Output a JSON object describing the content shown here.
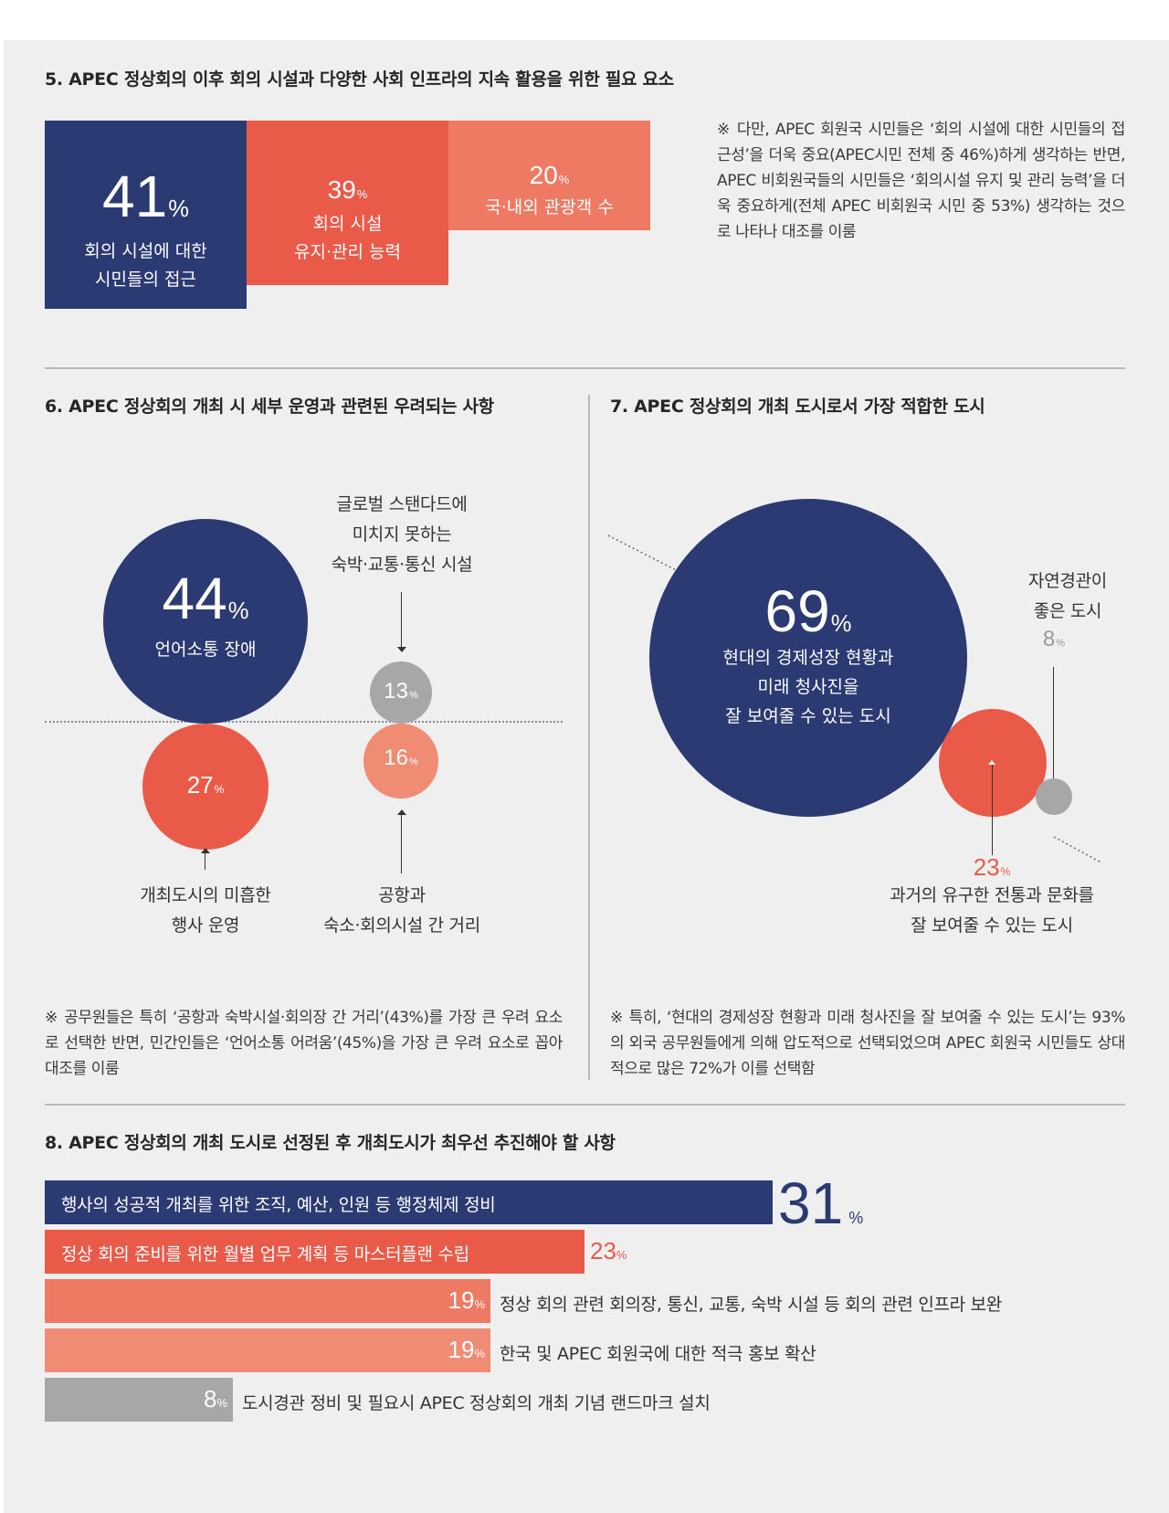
{
  "colors": {
    "navy": "#2b3a72",
    "red": "#e95a48",
    "coral": "#ee7a64",
    "salmon": "#f08b74",
    "gray": "#a7a7a7",
    "background": "#efefef"
  },
  "section5": {
    "title": "5. APEC 정상회의 이후 회의 시설과 다양한 사회 인프라의 지속 활용을 위한 필요 요소",
    "note": "※ 다만, APEC 회원국 시민들은 ‘회의 시설에 대한 시민들의 접근성’을 더욱 중요(APEC시민 전체 중 46%)하게 생각하는 반면, APEC 비회원국들의 시민들은 ‘회의시설 유지 및 관리 능력’을 더욱 중요하게(전체 APEC 비회원국 시민 중 53%) 생각하는 것으로 나타나 대조를 이룸",
    "items": [
      {
        "value": "41",
        "unit": "%",
        "label_line1": "회의 시설에 대한",
        "label_line2": "시민들의 접근"
      },
      {
        "value": "39",
        "unit": "%",
        "label_line1": "회의 시설",
        "label_line2": "유지·관리 능력"
      },
      {
        "value": "20",
        "unit": "%",
        "label_line1": "국·내외 관광객 수",
        "label_line2": ""
      }
    ]
  },
  "section6": {
    "title": "6. APEC 정상회의 개최 시 세부 운영과 관련된 우려되는 사항",
    "note": "※ 공무원들은 특히 ‘공항과 숙박시설·회의장 간 거리’(43%)를 가장 큰 우려 요소로 선택한 반면, 민간인들은 ‘언어소통 어려움’(45%)을 가장 큰 우려 요소로 꼽아 대조를 이룸",
    "items": [
      {
        "value": "44",
        "unit": "%",
        "label_line1": "언어소통 장애",
        "label_line2": ""
      },
      {
        "value": "27",
        "unit": "%",
        "label_line1": "개최도시의 미흡한",
        "label_line2": "행사 운영"
      },
      {
        "value": "13",
        "unit": "%",
        "label_line1": "글로벌 스탠다드에",
        "label_line2": "미치지 못하는",
        "label_line3": "숙박·교통·통신 시설"
      },
      {
        "value": "16",
        "unit": "%",
        "label_line1": "공항과",
        "label_line2": "숙소·회의시설 간 거리"
      }
    ]
  },
  "section7": {
    "title": "7. APEC 정상회의 개최 도시로서 가장 적합한 도시",
    "note": "※ 특히, ‘현대의 경제성장 현황과 미래 청사진을 잘 보여줄 수 있는 도시’는 93%의 외국 공무원들에게 의해 압도적으로 선택되었으며 APEC 회원국 시민들도 상대적으로 많은 72%가 이를 선택함",
    "items": [
      {
        "value": "69",
        "unit": "%",
        "label_line1": "현대의 경제성장 현황과",
        "label_line2": "미래 청사진을",
        "label_line3": "잘 보여줄 수 있는 도시"
      },
      {
        "value": "23",
        "unit": "%",
        "label_line1": "과거의 유구한 전통과 문화를",
        "label_line2": "잘 보여줄 수 있는 도시"
      },
      {
        "value": "8",
        "unit": "%",
        "label_line1": "자연경관이",
        "label_line2": "좋은 도시"
      }
    ]
  },
  "section8": {
    "title": "8. APEC 정상회의 개최 도시로 선정된 후 개최도시가 최우선 추진해야 할 사항",
    "items": [
      {
        "value": "31",
        "unit": "%",
        "label": "행사의 성공적 개최를 위한 조직, 예산, 인원 등 행정체제 정비"
      },
      {
        "value": "23",
        "unit": "%",
        "label": "정상 회의 준비를 위한 월별 업무 계획 등 마스터플랜 수립"
      },
      {
        "value": "19",
        "unit": "%",
        "label": "정상 회의 관련 회의장, 통신, 교통, 숙박 시설 등 회의 관련 인프라 보완"
      },
      {
        "value": "19",
        "unit": "%",
        "label": "한국 및 APEC 회원국에 대한 적극 홍보 확산"
      },
      {
        "value": "8",
        "unit": "%",
        "label": "도시경관 정비 및 필요시 APEC 정상회의 개최 기념 랜드마크 설치"
      }
    ]
  },
  "chart_data": [
    {
      "type": "bar",
      "title": "5. APEC 정상회의 이후 회의 시설과 다양한 사회 인프라의 지속 활용을 위한 필요 요소",
      "categories": [
        "회의 시설에 대한 시민들의 접근",
        "회의 시설 유지·관리 능력",
        "국·내외 관광객 수"
      ],
      "values": [
        41,
        39,
        20
      ],
      "unit": "%"
    },
    {
      "type": "bubble",
      "title": "6. APEC 정상회의 개최 시 세부 운영과 관련된 우려되는 사항",
      "categories": [
        "언어소통 장애",
        "개최도시의 미흡한 행사 운영",
        "글로벌 스탠다드에 미치지 못하는 숙박·교통·통신 시설",
        "공항과 숙소·회의시설 간 거리"
      ],
      "values": [
        44,
        27,
        13,
        16
      ],
      "unit": "%"
    },
    {
      "type": "bubble",
      "title": "7. APEC 정상회의 개최 도시로서 가장 적합한 도시",
      "categories": [
        "현대의 경제성장 현황과 미래 청사진을 잘 보여줄 수 있는 도시",
        "과거의 유구한 전통과 문화를 잘 보여줄 수 있는 도시",
        "자연경관이 좋은 도시"
      ],
      "values": [
        69,
        23,
        8
      ],
      "unit": "%"
    },
    {
      "type": "bar",
      "orientation": "horizontal",
      "title": "8. APEC 정상회의 개최 도시로 선정된 후 개최도시가 최우선 추진해야 할 사항",
      "categories": [
        "행사의 성공적 개최를 위한 조직, 예산, 인원 등 행정체제 정비",
        "정상 회의 준비를 위한 월별 업무 계획 등 마스터플랜 수립",
        "정상 회의 관련 회의장, 통신, 교통, 숙박 시설 등 회의 관련 인프라 보완",
        "한국 및 APEC 회원국에 대한 적극 홍보 확산",
        "도시경관 정비 및 필요시 APEC 정상회의 개최 기념 랜드마크 설치"
      ],
      "values": [
        31,
        23,
        19,
        19,
        8
      ],
      "unit": "%"
    }
  ]
}
